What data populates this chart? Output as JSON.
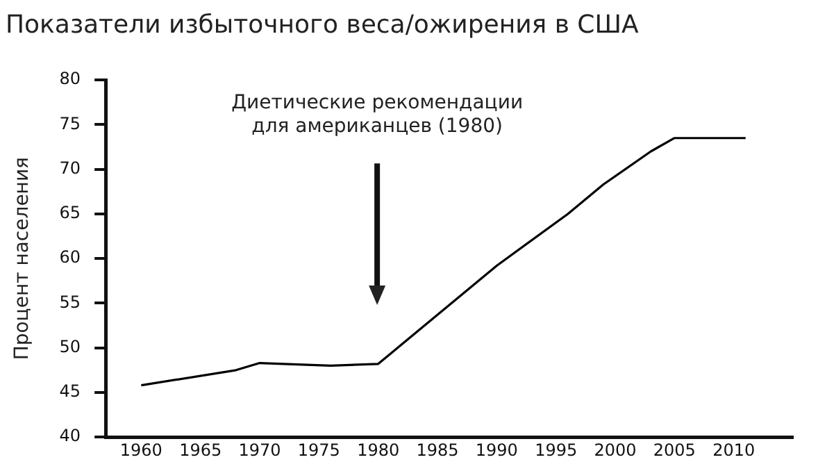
{
  "chart_data": {
    "type": "line",
    "title": "Показатели избыточного веса/ожирения в США",
    "ylabel": "Процент населения",
    "x": [
      1960,
      1968,
      1970,
      1976,
      1980,
      1982,
      1990,
      1996,
      1999,
      2003,
      2005,
      2011
    ],
    "series": [
      {
        "color": "#000000",
        "values": [
          45.8,
          47.5,
          48.3,
          48,
          48.2,
          50.4,
          59.2,
          65,
          68.3,
          72,
          73.5,
          73.5
        ]
      }
    ],
    "xlim": [
      1957,
      2015
    ],
    "xticks": [
      1960,
      1965,
      1970,
      1975,
      1980,
      1985,
      1990,
      1995,
      2000,
      2005,
      2010
    ],
    "ylim": [
      40,
      80
    ],
    "yticks": [
      40,
      45,
      50,
      55,
      60,
      65,
      70,
      75,
      80
    ],
    "annotations": [
      "Диетические рекомендации\nдля американцев (1980)"
    ],
    "grid": false,
    "legend": false,
    "marker": "none",
    "line_style": "solid"
  }
}
